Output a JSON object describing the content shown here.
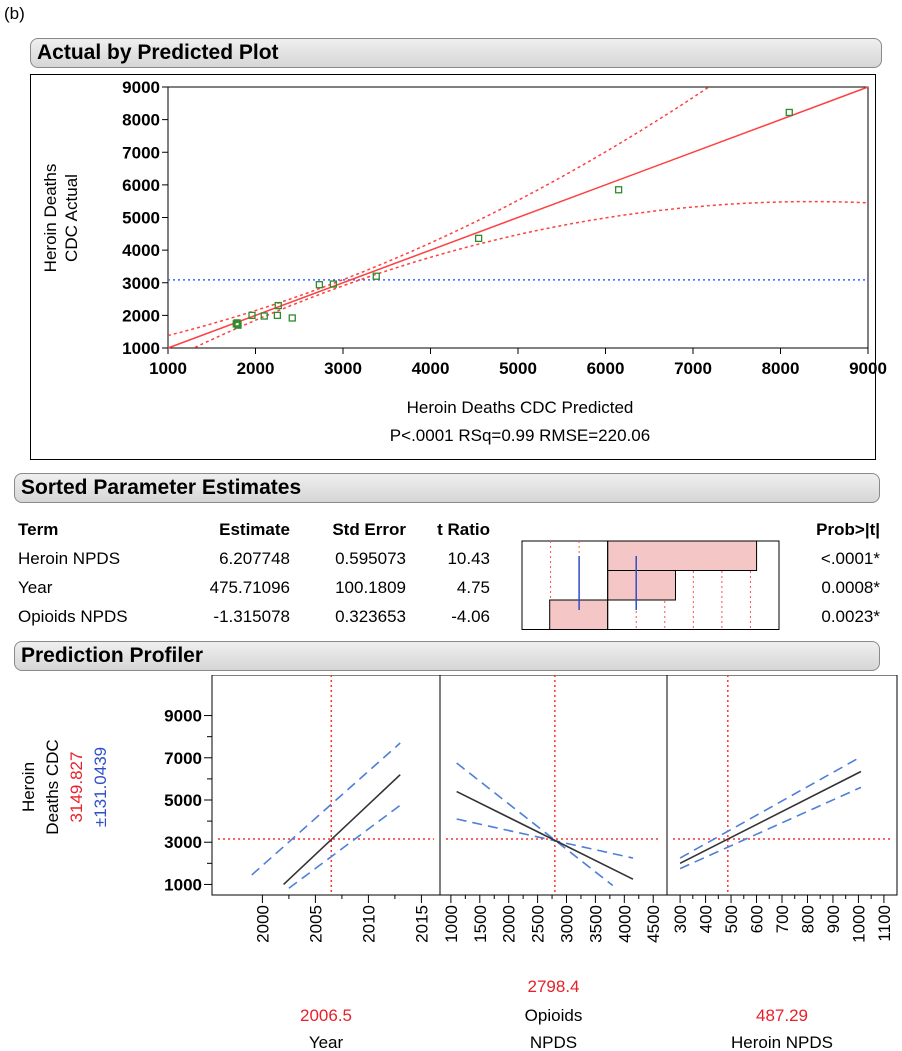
{
  "panel_tag": "(b)",
  "actual_vs_predicted": {
    "header": "Actual by Predicted Plot",
    "ylabel_line1": "Heroin Deaths",
    "ylabel_line2": "CDC Actual",
    "xlabel": "Heroin Deaths CDC Predicted",
    "stats": "P<.0001 RSq=0.99 RMSE=220.06"
  },
  "estimates": {
    "header": "Sorted Parameter Estimates",
    "columns": [
      "Term",
      "Estimate",
      "Std Error",
      "t Ratio",
      "Prob>|t|"
    ],
    "rows": [
      {
        "term": "Heroin NPDS",
        "estimate": "6.207748",
        "std_error": "0.595073",
        "t_ratio": "10.43",
        "prob": "<.0001*",
        "t": 10.43
      },
      {
        "term": "Year",
        "estimate": "475.71096",
        "std_error": "100.1809",
        "t_ratio": "4.75",
        "prob": "0.0008*",
        "t": 4.75
      },
      {
        "term": "Opioids NPDS",
        "estimate": "-1.315078",
        "std_error": "0.323653",
        "t_ratio": "-4.06",
        "prob": "0.0023*",
        "t": -4.06
      }
    ]
  },
  "profiler": {
    "header": "Prediction Profiler",
    "ylabel_line1": "Heroin",
    "ylabel_line2": "Deaths CDC",
    "y_value": "3149.827",
    "y_ci": "±131.0439",
    "panels": [
      {
        "current": "2006.5",
        "label_line1": "",
        "label_line2": "Year"
      },
      {
        "current": "2798.4",
        "label_line1": "Opioids",
        "label_line2": "NPDS"
      },
      {
        "current": "487.29",
        "label_line1": "",
        "label_line2": "Heroin NPDS"
      }
    ]
  },
  "colors": {
    "fit_line": "#ff4040",
    "mean_line": "#3366ff",
    "points": "#2e8b2e",
    "bar_fill": "#f4c6c6",
    "prediction_line": "#333333",
    "ci_dash": "#4f7fd8",
    "value_red": "#e8202a",
    "value_blue": "#2f4fc8"
  },
  "chart_data": [
    {
      "type": "scatter",
      "title": "Actual by Predicted Plot",
      "xlabel": "Heroin Deaths CDC Predicted",
      "ylabel": "Heroin Deaths CDC Actual",
      "xlim": [
        1000,
        9000
      ],
      "ylim": [
        1000,
        9000
      ],
      "xticks": [
        1000,
        2000,
        3000,
        4000,
        5000,
        6000,
        7000,
        8000,
        9000
      ],
      "yticks": [
        1000,
        2000,
        3000,
        4000,
        5000,
        6000,
        7000,
        8000,
        9000
      ],
      "mean_y": 3090,
      "points": [
        {
          "x": 1780,
          "y": 1740
        },
        {
          "x": 1800,
          "y": 1700
        },
        {
          "x": 1790,
          "y": 1770
        },
        {
          "x": 1960,
          "y": 2000
        },
        {
          "x": 2100,
          "y": 1980
        },
        {
          "x": 2250,
          "y": 2000
        },
        {
          "x": 2260,
          "y": 2300
        },
        {
          "x": 2420,
          "y": 1920
        },
        {
          "x": 2730,
          "y": 2940
        },
        {
          "x": 2890,
          "y": 2960
        },
        {
          "x": 3380,
          "y": 3200
        },
        {
          "x": 4550,
          "y": 4360
        },
        {
          "x": 6150,
          "y": 5850
        },
        {
          "x": 8100,
          "y": 8220
        }
      ],
      "annotation": "P<.0001 RSq=0.99 RMSE=220.06"
    },
    {
      "type": "bar",
      "title": "Sorted Parameter Estimates",
      "categories": [
        "Heroin NPDS",
        "Year",
        "Opioids NPDS"
      ],
      "values": [
        10.43,
        4.75,
        -4.06
      ],
      "xlim": [
        -6,
        12
      ]
    },
    {
      "type": "line",
      "title": "Prediction Profiler",
      "ylabel": "Heroin Deaths CDC",
      "ylim": [
        500,
        9500
      ],
      "yticks": [
        1000,
        3000,
        5000,
        7000,
        9000
      ],
      "current_y": 3149.827,
      "panels": [
        {
          "factor": "Year",
          "xlim": [
            1996,
            2016
          ],
          "xticks": [
            2000,
            2005,
            2010,
            2015
          ],
          "current_x": 2006.5,
          "line": {
            "x": [
              2002,
              2013
            ],
            "y": [
              1000,
              6200
            ]
          },
          "upper": {
            "x": [
              1999,
              2013
            ],
            "y": [
              1450,
              7700
            ]
          },
          "lower": {
            "x": [
              2002.5,
              2013
            ],
            "y": [
              820,
              4750
            ]
          }
        },
        {
          "factor": "Opioids NPDS",
          "xlim": [
            950,
            4600
          ],
          "xticks": [
            1000,
            1500,
            2000,
            2500,
            3000,
            3500,
            4000,
            4500
          ],
          "current_x": 2798.4,
          "line": {
            "x": [
              1100,
              4150
            ],
            "y": [
              5400,
              1250
            ]
          },
          "upper": {
            "x": [
              1100,
              3800
            ],
            "y": [
              6750,
              950
            ]
          },
          "lower": {
            "x": [
              1100,
              4150
            ],
            "y": [
              4100,
              2250
            ]
          }
        },
        {
          "factor": "Heroin NPDS",
          "xlim": [
            280,
            1120
          ],
          "xticks": [
            300,
            400,
            500,
            600,
            700,
            800,
            900,
            1000,
            1100
          ],
          "current_x": 487.29,
          "line": {
            "x": [
              300,
              1010
            ],
            "y": [
              2000,
              6350
            ]
          },
          "upper": {
            "x": [
              300,
              1010
            ],
            "y": [
              2250,
              7050
            ]
          },
          "lower": {
            "x": [
              300,
              1010
            ],
            "y": [
              1750,
              5600
            ]
          }
        }
      ]
    }
  ]
}
